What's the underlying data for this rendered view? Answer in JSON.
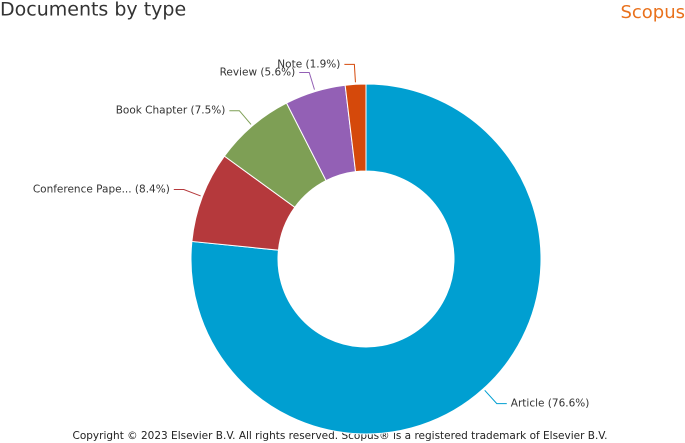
{
  "chart_data": {
    "type": "donut",
    "title": "Documents by type",
    "brand": "Scopus",
    "footer": "Copyright © 2023 Elsevier B.V. All rights reserved. Scopus® is a registered trademark of Elsevier B.V.",
    "values": [
      76.6,
      8.4,
      7.5,
      5.6,
      1.9
    ],
    "value_labels": [
      "Article (76.6%)",
      "Conference Pape... (8.4%)",
      "Book Chapter (7.5%)",
      "Review (5.6%)",
      "Note (1.9%)"
    ],
    "colors": [
      "#009fd1",
      "#b5393c",
      "#7e9f55",
      "#9360b5",
      "#d5490b"
    ]
  }
}
